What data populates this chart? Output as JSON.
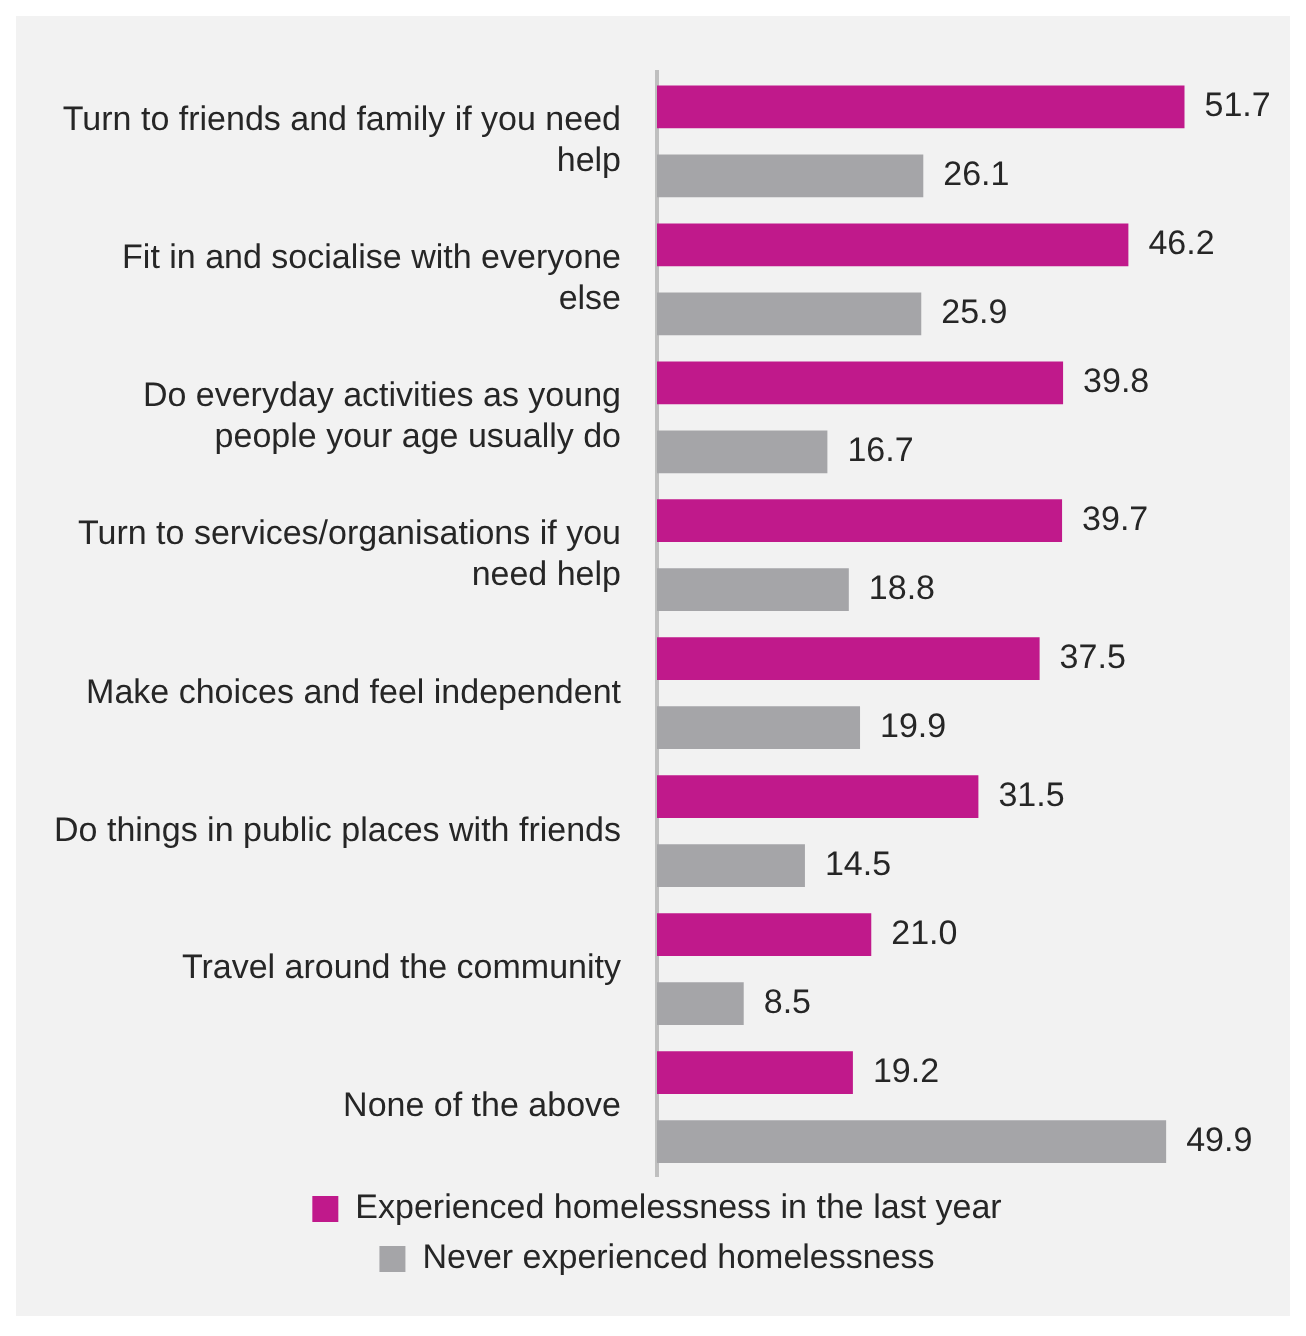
{
  "chart_data": {
    "type": "bar",
    "orientation": "horizontal",
    "legend": "bottom",
    "categories": [
      "Turn to friends and family if you need help",
      "Fit in and socialise with everyone else",
      "Do everyday activities as young people your age usually do",
      "Turn to services/organisations if you need help",
      "Make choices and feel independent",
      "Do things in public places with friends",
      "Travel around the community",
      "None of the above"
    ],
    "series": [
      {
        "name": "Experienced homelessness in the last year",
        "color": "#c0198b",
        "values": [
          51.7,
          46.2,
          39.8,
          39.7,
          37.5,
          31.5,
          21.0,
          19.2
        ],
        "value_labels": [
          "51.7",
          "46.2",
          "39.8",
          "39.7",
          "37.5",
          "31.5",
          "21.0",
          "19.2"
        ]
      },
      {
        "name": "Never experienced homelessness",
        "color": "#a5a5a8",
        "values": [
          26.1,
          25.9,
          16.7,
          18.8,
          19.9,
          14.5,
          8.5,
          49.9
        ],
        "value_labels": [
          "26.1",
          "25.9",
          "16.7",
          "18.8",
          "19.9",
          "14.5",
          "8.5",
          "49.9"
        ]
      }
    ]
  }
}
